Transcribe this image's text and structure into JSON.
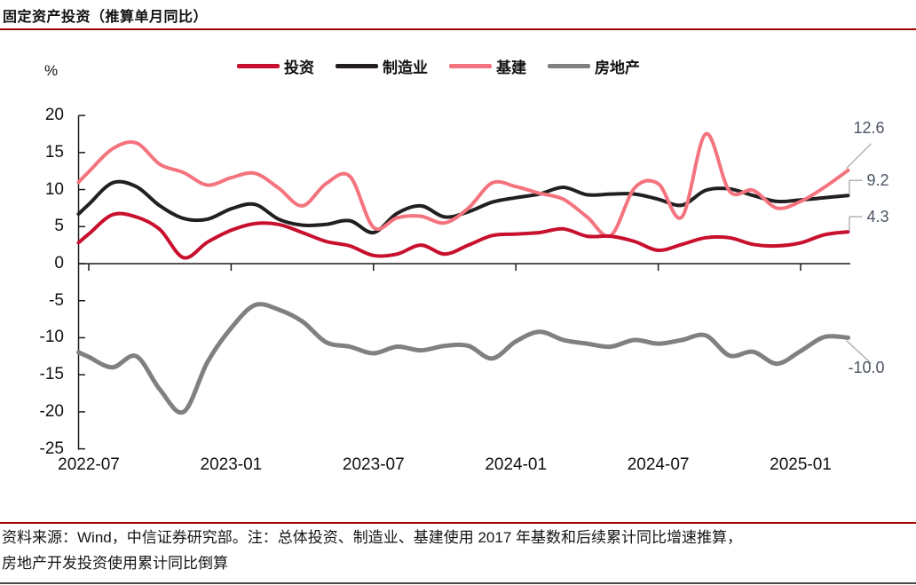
{
  "title": "固定资产投资（推算单月同比）",
  "unit_label": "%",
  "accent_color": "#A00000",
  "footer": {
    "line1": "资料来源：Wind，中信证券研究部。注：总体投资、制造业、基建使用 2017 年基数和后续累计同比增速推算，",
    "line2": "房地产开发投资使用累计同比倒算"
  },
  "chart_data": {
    "type": "line",
    "title": "固定资产投资（推算单月同比）",
    "ylabel": "%",
    "ylim": [
      -25,
      20
    ],
    "y_ticks": [
      20,
      15,
      10,
      5,
      0,
      -5,
      -10,
      -15,
      -20,
      -25
    ],
    "grid": false,
    "legend_position": "top",
    "x": [
      "2022-07",
      "2022-08",
      "2022-09",
      "2022-10",
      "2022-11",
      "2022-12",
      "2023-01",
      "2023-02",
      "2023-03",
      "2023-04",
      "2023-05",
      "2023-06",
      "2023-07",
      "2023-08",
      "2023-09",
      "2023-10",
      "2023-11",
      "2023-12",
      "2024-01",
      "2024-02",
      "2024-03",
      "2024-04",
      "2024-05",
      "2024-06",
      "2024-07",
      "2024-08",
      "2024-09",
      "2024-10",
      "2024-11",
      "2024-12",
      "2025-01",
      "2025-02",
      "2025-03"
    ],
    "x_tick_labels": [
      "2022-07",
      "2023-01",
      "2023-07",
      "2024-01",
      "2024-07",
      "2025-01"
    ],
    "series": [
      {
        "key": "investment",
        "name": "投资",
        "color": "#C8102E",
        "end_label": "4.3",
        "callout": "bracket",
        "values": [
          4.0,
          6.6,
          6.3,
          4.6,
          0.8,
          2.9,
          4.5,
          5.4,
          5.3,
          4.2,
          3.0,
          2.4,
          1.1,
          1.3,
          2.5,
          1.3,
          2.5,
          3.8,
          4.0,
          4.2,
          4.7,
          3.7,
          3.7,
          3.0,
          1.8,
          2.6,
          3.5,
          3.5,
          2.6,
          2.4,
          2.8,
          3.9,
          4.3
        ]
      },
      {
        "key": "manufacturing",
        "name": "制造业",
        "color": "#231F20",
        "end_label": "9.2",
        "callout": "bracket",
        "values": [
          8.0,
          10.9,
          10.4,
          7.8,
          6.1,
          6.0,
          7.4,
          8.0,
          6.0,
          5.2,
          5.3,
          5.8,
          4.2,
          6.8,
          7.8,
          6.3,
          7.0,
          8.3,
          8.9,
          9.4,
          10.3,
          9.3,
          9.4,
          9.4,
          8.7,
          7.9,
          9.9,
          10.1,
          9.2,
          8.4,
          8.6,
          8.9,
          9.2
        ]
      },
      {
        "key": "infrastructure",
        "name": "基建",
        "color": "#F4737E",
        "end_label": "12.6",
        "callout": "diagonal-up",
        "values": [
          12.4,
          15.5,
          16.3,
          13.4,
          12.3,
          10.6,
          11.6,
          12.2,
          10.2,
          7.8,
          10.8,
          11.8,
          4.9,
          6.2,
          6.4,
          5.5,
          7.5,
          10.9,
          10.4,
          9.5,
          8.7,
          6.3,
          3.8,
          10.2,
          10.8,
          6.3,
          17.5,
          9.8,
          9.9,
          7.5,
          8.4,
          10.3,
          12.6
        ]
      },
      {
        "key": "real_estate",
        "name": "房地产",
        "color": "#808080",
        "end_label": "-10.0",
        "callout": "diagonal-down",
        "values": [
          -12.6,
          -14.0,
          -12.5,
          -17.0,
          -20.0,
          -13.3,
          -8.7,
          -5.6,
          -6.2,
          -7.8,
          -10.6,
          -11.2,
          -12.1,
          -11.2,
          -11.7,
          -11.1,
          -11.1,
          -12.8,
          -10.5,
          -9.2,
          -10.3,
          -10.8,
          -11.2,
          -10.3,
          -10.8,
          -10.3,
          -9.7,
          -12.4,
          -11.9,
          -13.5,
          -11.8,
          -9.9,
          -10.0
        ]
      }
    ]
  }
}
